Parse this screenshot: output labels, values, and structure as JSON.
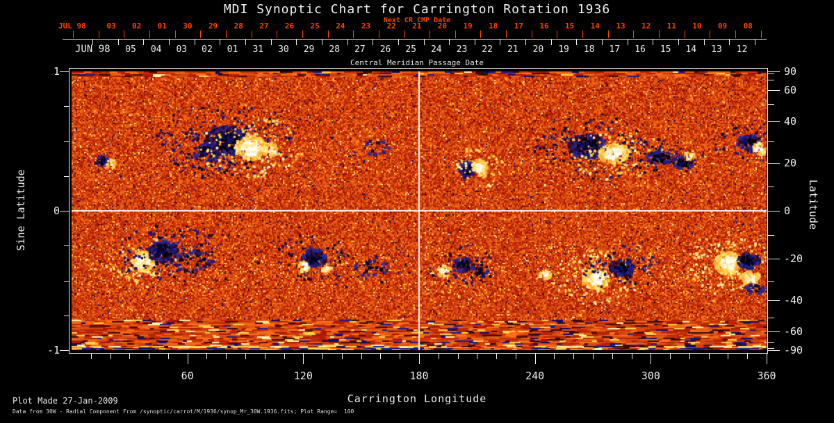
{
  "footer": {
    "line1": "Plot Made 27-Jan-2009",
    "line2": "Data from 30W - Radial Component From /synoptic/carrot/M/1936/synop_Mr_30W.1936.fits; Plot Range=  100"
  },
  "colors": {
    "background": "#000000",
    "foreground": "#ededed",
    "accent_red": "#ff4400",
    "grid_line": "#ffffff"
  },
  "chart_data": {
    "type": "heatmap",
    "title": "MDI Synoptic Chart for Carrington Rotation 1936",
    "xlabel": "Carrington Longitude",
    "x_range": [
      0,
      360
    ],
    "x_major_ticks": [
      60,
      120,
      180,
      240,
      300,
      360
    ],
    "x_minor_step": 10,
    "ylabel_left": "Sine Latitude",
    "y_range_sine": [
      -1,
      1
    ],
    "y_left_ticks": [
      1,
      0,
      -1
    ],
    "y_left_minor_step_sine": 0.25,
    "ylabel_right": "Latitude",
    "y_right_ticks": [
      90,
      60,
      40,
      20,
      0,
      -20,
      -40,
      -60,
      -90
    ],
    "y_right_minor_step_deg": 10,
    "value_range": [
      -100,
      100
    ],
    "colormap": "negative: black/dark-blue, zero: red/orange noise, positive: yellow/white",
    "grid_lines": {
      "longitude": 180,
      "latitude": 0
    },
    "next_cr_cmp_dates": {
      "label": "Next CR CMP Date",
      "month": "JUL 98",
      "days": [
        "03",
        "02",
        "01",
        "30",
        "29",
        "28",
        "27",
        "26",
        "25",
        "24",
        "23",
        "22",
        "21",
        "20",
        "19",
        "18",
        "17",
        "16",
        "15",
        "14",
        "13",
        "12",
        "11",
        "10",
        "09",
        "08"
      ]
    },
    "cmp_dates": {
      "month": "JUN 98",
      "axis_label": "Central Meridian Passage Date",
      "days": [
        "05",
        "04",
        "03",
        "02",
        "01",
        "31",
        "30",
        "29",
        "28",
        "27",
        "26",
        "25",
        "24",
        "23",
        "22",
        "21",
        "20",
        "19",
        "18",
        "17",
        "16",
        "15",
        "14",
        "13",
        "12"
      ]
    },
    "active_regions": [
      {
        "name": "AR-N1",
        "clusters": [
          {
            "pol": -1,
            "lon": 15.5,
            "sl": 0.355,
            "rlon": 3.2,
            "rsl": 0.04,
            "den": 0.9
          },
          {
            "pol": 1,
            "lon": 20.5,
            "sl": 0.335,
            "rlon": 2.4,
            "rsl": 0.03,
            "den": 0.8
          }
        ]
      },
      {
        "name": "AR-N2",
        "clusters": [
          {
            "pol": -1,
            "lon": 81,
            "sl": 0.5,
            "rlon": 12,
            "rsl": 0.105,
            "den": 1.1,
            "halo": 1
          },
          {
            "pol": -1,
            "lon": 70,
            "sl": 0.42,
            "rlon": 7,
            "rsl": 0.07,
            "den": 0.5,
            "halo": 1
          },
          {
            "pol": 1,
            "lon": 93,
            "sl": 0.45,
            "rlon": 8.5,
            "rsl": 0.085,
            "den": 1.2,
            "halo": 1
          },
          {
            "pol": 1,
            "lon": 103,
            "sl": 0.43,
            "rlon": 5,
            "rsl": 0.05,
            "den": 0.5
          }
        ]
      },
      {
        "name": "AR-N3",
        "clusters": [
          {
            "pol": -1,
            "lon": 204.5,
            "sl": 0.295,
            "rlon": 4,
            "rsl": 0.06,
            "den": 1.3
          },
          {
            "pol": 1,
            "lon": 211.5,
            "sl": 0.31,
            "rlon": 4,
            "rsl": 0.06,
            "den": 1.3,
            "halo": 1
          }
        ]
      },
      {
        "name": "AR-N4",
        "clusters": [
          {
            "pol": -1,
            "lon": 267,
            "sl": 0.46,
            "rlon": 10,
            "rsl": 0.09,
            "den": 1.1,
            "halo": 1
          },
          {
            "pol": 1,
            "lon": 281,
            "sl": 0.41,
            "rlon": 8,
            "rsl": 0.07,
            "den": 1.1,
            "halo": 1
          }
        ]
      },
      {
        "name": "AR-N5",
        "clusters": [
          {
            "pol": -1,
            "lon": 305,
            "sl": 0.38,
            "rlon": 7,
            "rsl": 0.05,
            "den": 0.8,
            "halo": 1
          },
          {
            "pol": -1,
            "lon": 317,
            "sl": 0.345,
            "rlon": 5.5,
            "rsl": 0.045,
            "den": 0.8
          },
          {
            "pol": 1,
            "lon": 320,
            "sl": 0.39,
            "rlon": 3,
            "rsl": 0.03,
            "den": 0.7
          }
        ]
      },
      {
        "name": "AR-N6",
        "clusters": [
          {
            "pol": -1,
            "lon": 351,
            "sl": 0.49,
            "rlon": 6.5,
            "rsl": 0.055,
            "den": 1.0,
            "halo": 1
          },
          {
            "pol": 1,
            "lon": 356.5,
            "sl": 0.445,
            "rlon": 3.8,
            "rsl": 0.045,
            "den": 0.9
          }
        ]
      },
      {
        "name": "AR-N7",
        "clusters": [
          {
            "pol": -1,
            "lon": 157,
            "sl": 0.45,
            "rlon": 8,
            "rsl": 0.06,
            "den": 0.15
          }
        ]
      },
      {
        "name": "AR-S1",
        "clusters": [
          {
            "pol": 1,
            "lon": 37,
            "sl": -0.365,
            "rlon": 6,
            "rsl": 0.07,
            "den": 1.4,
            "halo": 1
          },
          {
            "pol": -1,
            "lon": 47.5,
            "sl": -0.29,
            "rlon": 8,
            "rsl": 0.075,
            "den": 1.1,
            "halo": 1
          },
          {
            "pol": -1,
            "lon": 62,
            "sl": -0.36,
            "rlon": 12,
            "rsl": 0.08,
            "den": 0.25,
            "halo": 1
          }
        ]
      },
      {
        "name": "AR-S2",
        "clusters": [
          {
            "pol": -1,
            "lon": 125.5,
            "sl": -0.34,
            "rlon": 6.5,
            "rsl": 0.065,
            "den": 1.1,
            "halo": 1
          },
          {
            "pol": 1,
            "lon": 120.5,
            "sl": -0.4,
            "rlon": 3,
            "rsl": 0.04,
            "den": 0.8
          },
          {
            "pol": 1,
            "lon": 132,
            "sl": -0.42,
            "rlon": 2.6,
            "rsl": 0.03,
            "den": 0.7
          }
        ]
      },
      {
        "name": "AR-S3",
        "clusters": [
          {
            "pol": -1,
            "lon": 155,
            "sl": -0.41,
            "rlon": 10,
            "rsl": 0.06,
            "den": 0.2,
            "halo": 1
          }
        ]
      },
      {
        "name": "AR-S4",
        "clusters": [
          {
            "pol": 1,
            "lon": 193,
            "sl": -0.435,
            "rlon": 3.6,
            "rsl": 0.045,
            "den": 1.0
          },
          {
            "pol": -1,
            "lon": 202.5,
            "sl": -0.39,
            "rlon": 6,
            "rsl": 0.055,
            "den": 0.9,
            "halo": 1
          },
          {
            "pol": -1,
            "lon": 212,
            "sl": -0.44,
            "rlon": 4,
            "rsl": 0.04,
            "den": 0.5
          }
        ]
      },
      {
        "name": "AR-S5",
        "clusters": [
          {
            "pol": 1,
            "lon": 245.5,
            "sl": -0.455,
            "rlon": 3.4,
            "rsl": 0.035,
            "den": 0.9
          }
        ]
      },
      {
        "name": "AR-S6",
        "clusters": [
          {
            "pol": 1,
            "lon": 271.5,
            "sl": -0.49,
            "rlon": 7,
            "rsl": 0.075,
            "den": 1.3,
            "halo": 1
          },
          {
            "pol": -1,
            "lon": 285,
            "sl": -0.41,
            "rlon": 6.5,
            "rsl": 0.06,
            "den": 1.2,
            "halo": 1
          }
        ]
      },
      {
        "name": "AR-S7",
        "clusters": [
          {
            "pol": 1,
            "lon": 340,
            "sl": -0.375,
            "rlon": 7,
            "rsl": 0.085,
            "den": 1.3,
            "halo": 1
          },
          {
            "pol": -1,
            "lon": 350.5,
            "sl": -0.36,
            "rlon": 6,
            "rsl": 0.055,
            "den": 1.2
          },
          {
            "pol": 1,
            "lon": 351.5,
            "sl": -0.48,
            "rlon": 5,
            "rsl": 0.05,
            "den": 1.1
          },
          {
            "pol": -1,
            "lon": 354,
            "sl": -0.56,
            "rlon": 5,
            "rsl": 0.04,
            "den": 0.5
          }
        ]
      }
    ]
  }
}
